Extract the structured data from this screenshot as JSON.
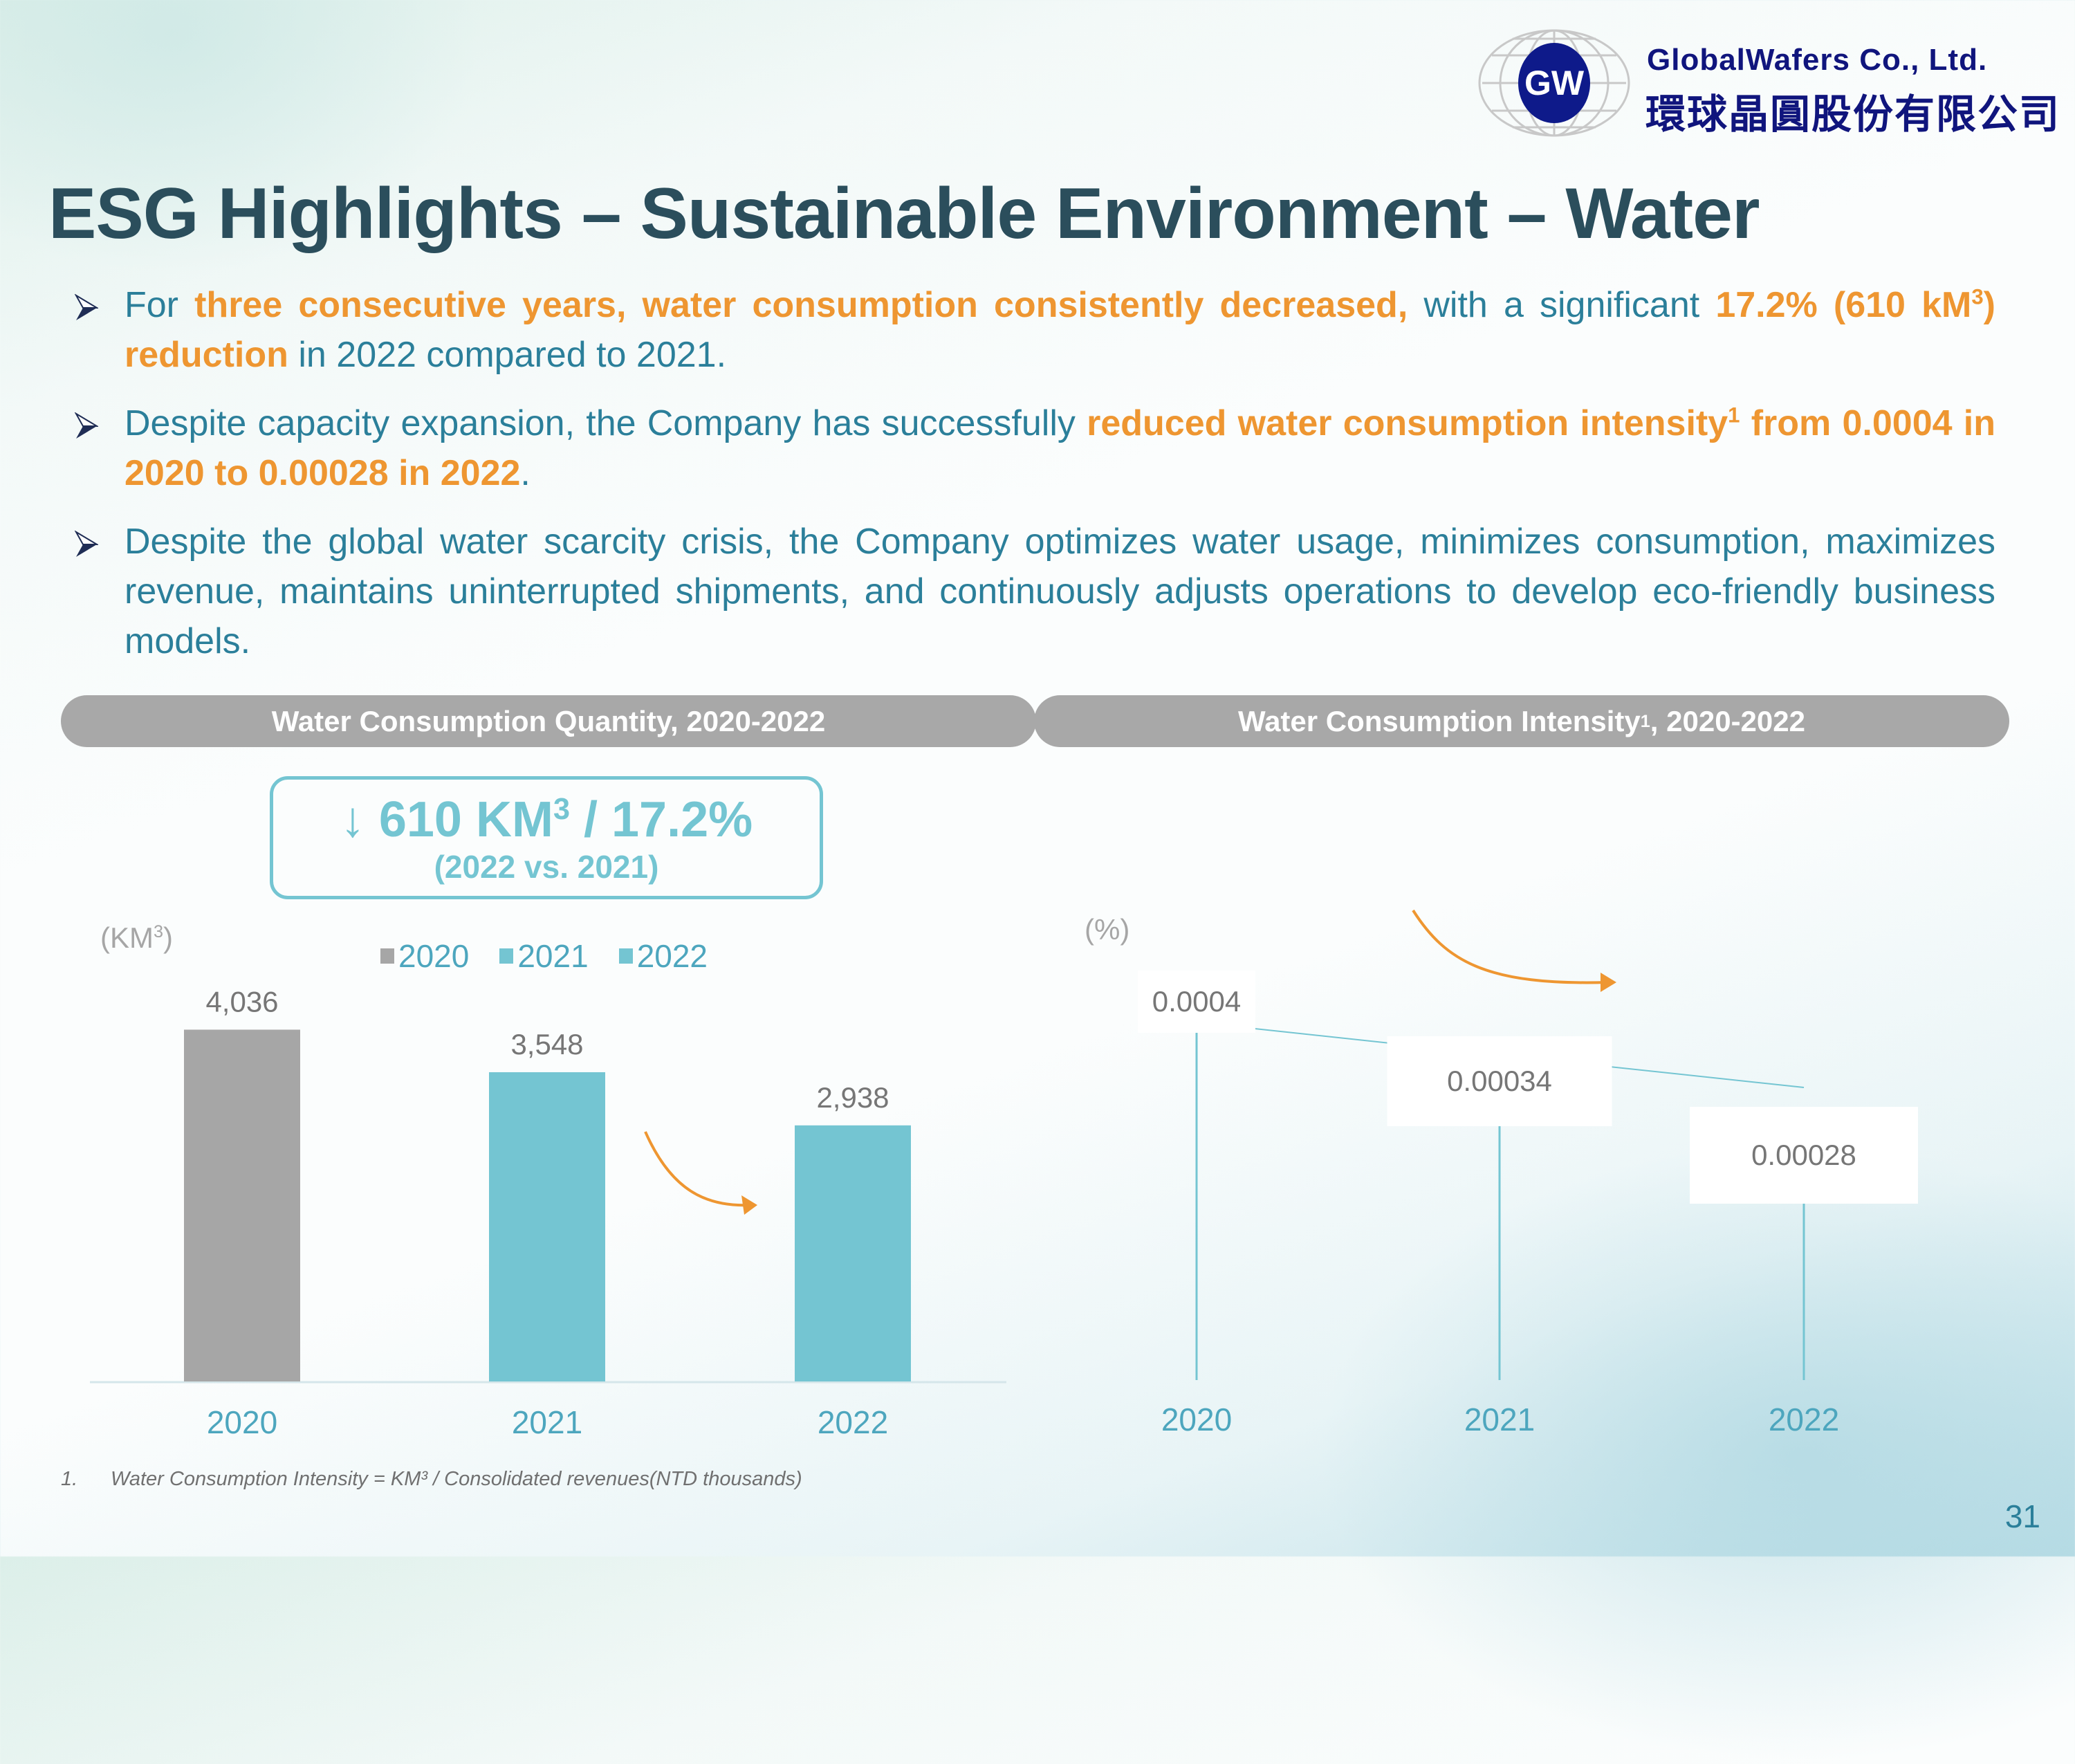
{
  "logo": {
    "badge_text": "GW",
    "company_en": "GlobalWafers Co., Ltd.",
    "company_zh": "環球晶圓股份有限公司"
  },
  "title": "ESG Highlights – Sustainable Environment – Water",
  "bullets": [
    {
      "segments": [
        {
          "text": "For ",
          "highlight": false
        },
        {
          "text": "three consecutive years, water consumption consistently decreased,",
          "highlight": true
        },
        {
          "text": " with a significant ",
          "highlight": false
        },
        {
          "text": "17.2% (610 kM",
          "highlight": true
        },
        {
          "text": "3",
          "highlight": true,
          "sup": true
        },
        {
          "text": ") reduction",
          "highlight": true
        },
        {
          "text": " in 2022 compared to 2021.",
          "highlight": false
        }
      ]
    },
    {
      "segments": [
        {
          "text": "Despite capacity expansion, the Company has successfully ",
          "highlight": false
        },
        {
          "text": "reduced water consumption intensity",
          "highlight": true
        },
        {
          "text": "1",
          "highlight": true,
          "sup": true
        },
        {
          "text": " from 0.0004 in 2020 to 0.00028 in 2022",
          "highlight": true
        },
        {
          "text": ".",
          "highlight": false
        }
      ]
    },
    {
      "segments": [
        {
          "text": "Despite the global water scarcity crisis, the Company optimizes water usage, minimizes consumption, maximizes revenue, maintains uninterrupted shipments, and continuously adjusts operations to develop eco-friendly business models.",
          "highlight": false
        }
      ]
    }
  ],
  "panels": {
    "left_title": "Water Consumption Quantity, 2020-2022",
    "right_title_main": "Water Consumption Intensity",
    "right_title_sup": "1",
    "right_title_tail": ", 2020-2022"
  },
  "callout": {
    "arrow": "↓",
    "value_text": "610 KM",
    "value_sup": "3",
    "value_tail": " / 17.2%",
    "comparison": "(2022 vs. 2021)"
  },
  "colors": {
    "title": "#2b4e5c",
    "body_text": "#2b7f9a",
    "highlight": "#ee9631",
    "bar_2020": "#a6a6a6",
    "bar_teal": "#74c5d2",
    "pill": "#a8a8a8",
    "axis_label": "#4da6be",
    "data_label": "#767676"
  },
  "chart_data": [
    {
      "type": "bar",
      "title": "Water Consumption Quantity, 2020-2022",
      "ylabel": "(KM3)",
      "ylabel_main": "(KM",
      "ylabel_sup": "3",
      "ylabel_tail": ")",
      "categories": [
        "2020",
        "2021",
        "2022"
      ],
      "values": [
        4036,
        3548,
        2938
      ],
      "data_labels": [
        "4,036",
        "3,548",
        "2,938"
      ],
      "legend": [
        "2020",
        "2021",
        "2022"
      ],
      "legend_position": "top-center",
      "ylim": [
        0,
        4500
      ],
      "grid": false,
      "annotation": "decreasing trend arrow between 2021 and 2022"
    },
    {
      "type": "line",
      "title": "Water Consumption Intensity1, 2020-2022",
      "ylabel": "(%)",
      "categories": [
        "2020",
        "2021",
        "2022"
      ],
      "values": [
        0.0004,
        0.00034,
        0.00028
      ],
      "data_labels": [
        "0.0004",
        "0.00034",
        "0.00028"
      ],
      "grid": false,
      "annotation": "decreasing trend arrow above line"
    }
  ],
  "footnote": {
    "number": "1.",
    "text": "Water Consumption Intensity = KM³ / Consolidated revenues(NTD thousands)"
  },
  "page_number": "31"
}
